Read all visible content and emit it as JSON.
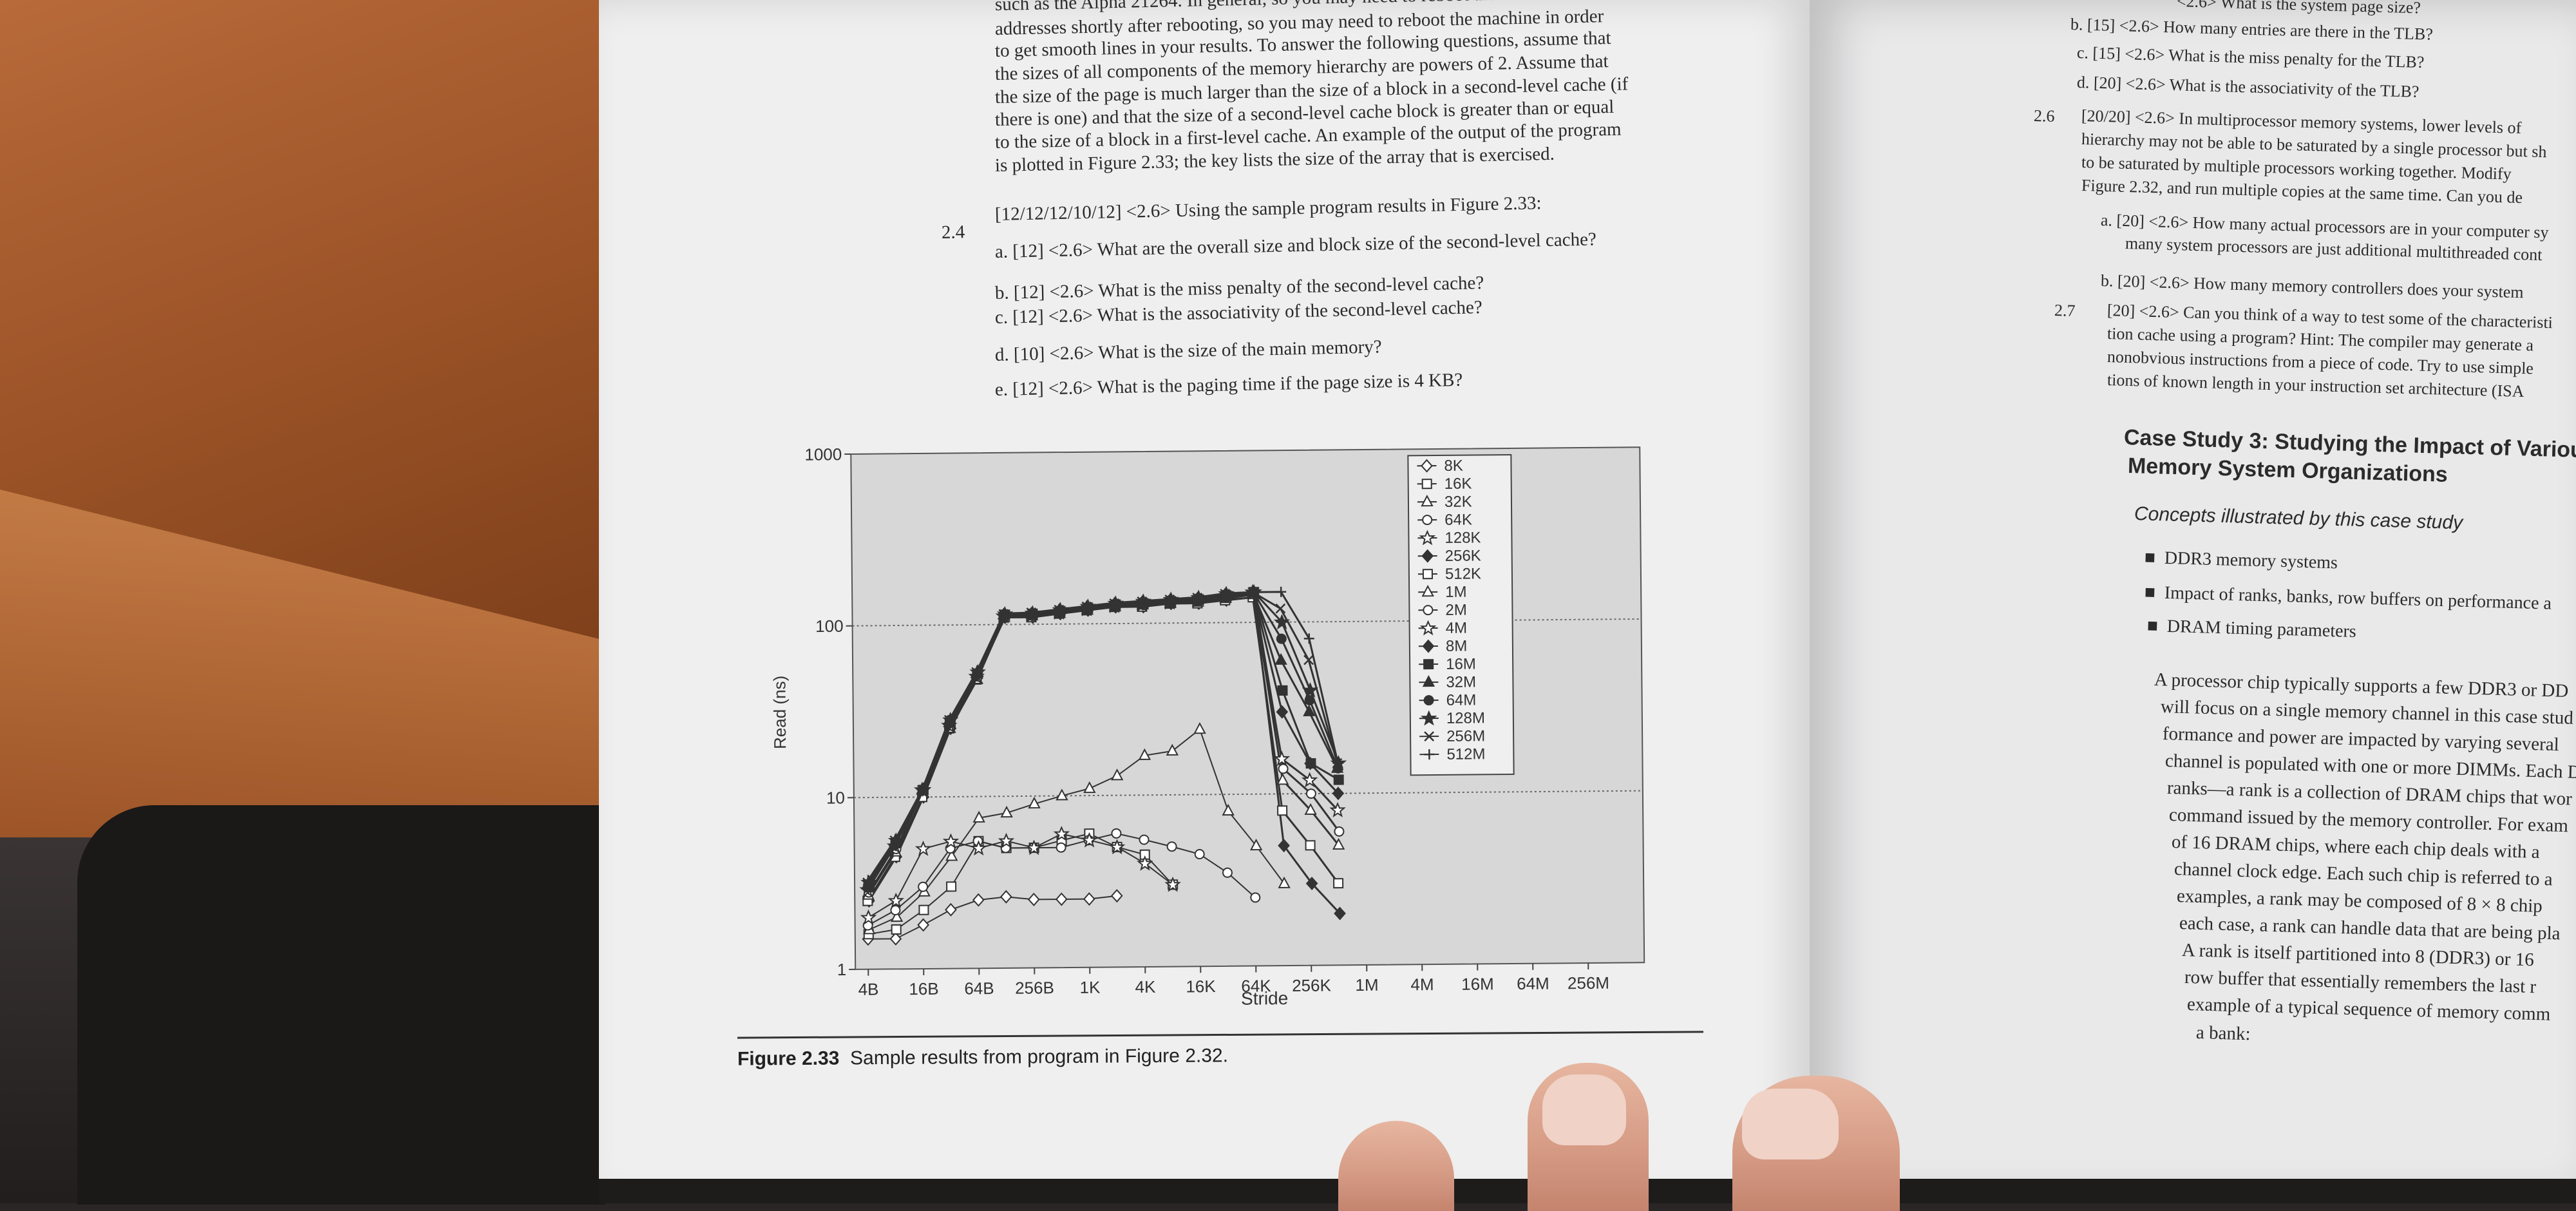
{
  "left_page": {
    "intro_lines": [
      "such as the Alpha 21264. In general, so you may need to reboot the machine in order",
      "addresses shortly after rebooting, so you may need to reboot the machine in order",
      "to get smooth lines in your results. To answer the following questions, assume that",
      "the sizes of all components of the memory hierarchy are powers of 2. Assume that",
      "the size of the page is much larger than the size of a block in a second-level cache (if",
      "there is one) and that the size of a second-level cache block is greater than or equal",
      "to the size of a block in a first-level cache. An example of the output of the program",
      "is plotted in Figure 2.33; the key lists the size of the array that is exercised."
    ],
    "exercise_number": "2.4",
    "exercise_header": "[12/12/12/10/12] <2.6> Using the sample program results in Figure 2.33:",
    "items": [
      "a. [12] <2.6> What are the overall size and block size of the second-level cache?",
      "b. [12] <2.6> What is the miss penalty of the second-level cache?",
      "c. [12] <2.6> What is the associativity of the second-level cache?",
      "d. [10] <2.6> What is the size of the main memory?",
      "e. [12] <2.6> What is the paging time if the page size is 4 KB?"
    ],
    "caption_label": "Figure 2.33",
    "caption_text": "Sample results from program in Figure 2.32."
  },
  "right_page": {
    "lines": [
      "<2.6> What is the system page size?",
      "b. [15] <2.6> How many entries are there in the TLB?",
      "c. [15] <2.6> What is the miss penalty for the TLB?",
      "d. [20] <2.6> What is the associativity of the TLB?"
    ],
    "ex26_number": "2.6",
    "ex26_lines": [
      "[20/20] <2.6> In multiprocessor memory systems, lower levels of",
      "hierarchy may not be able to be saturated by a single processor but sh",
      "to be saturated by multiple processors working together. Modify",
      "Figure 2.32, and run multiple copies at the same time. Can you de"
    ],
    "ex26_items": [
      "a. [20] <2.6> How many actual processors are in your computer sy",
      "many system processors are just additional multithreaded cont",
      "b. [20] <2.6> How many memory controllers does your system"
    ],
    "ex27_number": "2.7",
    "ex27_lines": [
      "[20] <2.6> Can you think of a way to test some of the characteristi",
      "tion cache using a program? Hint: The compiler may generate a",
      "nonobvious instructions from a piece of code. Try to use simple",
      "tions of known length in your instruction set architecture (ISA"
    ],
    "case_study_title_1": "Case Study 3: Studying the Impact of Various",
    "case_study_title_2": "Memory System Organizations",
    "concepts_heading": "Concepts illustrated by this case study",
    "bullets": [
      "DDR3 memory systems",
      "Impact of ranks, banks, row buffers on performance a",
      "DRAM timing parameters"
    ],
    "body_lines": [
      "A processor chip typically supports a few DDR3 or DD",
      "will focus on a single memory channel in this case stud",
      "formance and power are impacted by varying several",
      "channel is populated with one or more DIMMs. Each D",
      "ranks—a rank is a collection of DRAM chips that wor",
      "command issued by the memory controller. For exam",
      "of 16 DRAM chips, where each chip deals with a",
      "channel clock edge. Each such chip is referred to a",
      "examples, a rank may be composed of 8 × 8 chip",
      "each case, a rank can handle data that are being pla",
      "A rank is itself partitioned into 8 (DDR3) or 16",
      "row buffer that essentially remembers the last r",
      "example of a typical sequence of memory comm",
      "a bank:"
    ]
  },
  "chart_data": {
    "type": "line",
    "title": "",
    "xlabel": "Stride",
    "ylabel": "Read (ns)",
    "yscale": "log",
    "ylim": [
      1,
      1000
    ],
    "y_ticks": [
      "1",
      "10",
      "100",
      "1000"
    ],
    "x_ticks": [
      "4B",
      "16B",
      "64B",
      "256B",
      "1K",
      "4K",
      "16K",
      "64K",
      "256K",
      "1M",
      "4M",
      "16M",
      "64M",
      "256M"
    ],
    "legend_position": "top-right",
    "grid": "dotted horizontal at 10 and 100",
    "series": [
      {
        "name": "8K",
        "marker": "diamond",
        "values": [
          1.5,
          1.5,
          1.8,
          2.2,
          2.5,
          2.6,
          2.5,
          2.5,
          2.5,
          2.6
        ]
      },
      {
        "name": "16K",
        "marker": "square",
        "values": [
          1.6,
          1.7,
          2.2,
          3.0,
          5.5,
          5.0,
          5.0,
          5.5,
          6.0,
          5.0,
          4.5,
          3.0
        ]
      },
      {
        "name": "32K",
        "marker": "triangle",
        "values": [
          1.7,
          2.0,
          2.8,
          4.5,
          7.5,
          8.0,
          9.0,
          10,
          11,
          13,
          17,
          18,
          24,
          8,
          5,
          3
        ]
      },
      {
        "name": "64K",
        "marker": "circle",
        "values": [
          1.8,
          2.2,
          3.0,
          5.0,
          5.5,
          5.0,
          5.0,
          5.0,
          5.5,
          6.0,
          5.5,
          5.0,
          4.5,
          3.5,
          2.5
        ]
      },
      {
        "name": "128K",
        "marker": "star",
        "values": [
          2.0,
          2.5,
          5.0,
          5.5,
          5.0,
          5.5,
          5.0,
          6.0,
          5.5,
          5.0,
          4.0,
          3.0
        ]
      },
      {
        "name": "256K",
        "marker": "diamond-filled",
        "values": [
          2.5,
          4.5,
          10,
          25,
          50,
          110,
          110,
          115,
          120,
          125,
          125,
          130,
          130,
          135,
          140,
          5,
          3,
          2
        ]
      },
      {
        "name": "512K",
        "marker": "square-open",
        "values": [
          2.5,
          4.5,
          10,
          25,
          48,
          110,
          110,
          115,
          120,
          125,
          125,
          130,
          130,
          135,
          140,
          8,
          5,
          3
        ]
      },
      {
        "name": "1M",
        "marker": "triangle-open",
        "values": [
          2.7,
          4.8,
          11,
          25,
          48,
          110,
          112,
          115,
          120,
          125,
          128,
          130,
          132,
          138,
          145,
          12,
          8,
          5
        ]
      },
      {
        "name": "2M",
        "marker": "circle-open",
        "values": [
          2.8,
          5.0,
          11,
          26,
          50,
          112,
          112,
          116,
          121,
          126,
          128,
          131,
          134,
          140,
          148,
          14,
          10,
          6
        ]
      },
      {
        "name": "4M",
        "marker": "star-open",
        "values": [
          2.9,
          5.2,
          11,
          26,
          50,
          112,
          113,
          117,
          122,
          127,
          129,
          132,
          135,
          142,
          150,
          16,
          12,
          8
        ]
      },
      {
        "name": "8M",
        "marker": "diamond-filled",
        "values": [
          3.0,
          5.3,
          11,
          27,
          51,
          113,
          114,
          118,
          123,
          128,
          130,
          133,
          136,
          143,
          150,
          30,
          15,
          10
        ]
      },
      {
        "name": "16M",
        "marker": "square-filled",
        "values": [
          3.0,
          5.4,
          11,
          27,
          52,
          114,
          115,
          119,
          124,
          129,
          131,
          134,
          137,
          144,
          150,
          40,
          15,
          12
        ]
      },
      {
        "name": "32M",
        "marker": "triangle-filled",
        "values": [
          3.1,
          5.5,
          11,
          27,
          52,
          114,
          115,
          120,
          125,
          130,
          132,
          135,
          138,
          145,
          150,
          60,
          30,
          14
        ]
      },
      {
        "name": "64M",
        "marker": "circle-filled",
        "values": [
          3.1,
          5.5,
          11,
          28,
          52,
          115,
          116,
          120,
          125,
          130,
          133,
          136,
          139,
          146,
          150,
          80,
          35,
          14
        ]
      },
      {
        "name": "128M",
        "marker": "star-filled",
        "values": [
          3.2,
          5.6,
          11,
          28,
          53,
          115,
          116,
          121,
          126,
          131,
          134,
          137,
          140,
          147,
          150,
          100,
          40,
          15
        ]
      },
      {
        "name": "256M",
        "marker": "x",
        "values": [
          3.2,
          5.6,
          11,
          28,
          53,
          115,
          117,
          121,
          126,
          131,
          134,
          137,
          140,
          147,
          150,
          120,
          60,
          15
        ]
      },
      {
        "name": "512M",
        "marker": "plus",
        "values": [
          3.3,
          5.7,
          11,
          28,
          54,
          116,
          117,
          122,
          127,
          132,
          135,
          138,
          141,
          148,
          150,
          150,
          80,
          15
        ]
      }
    ]
  }
}
